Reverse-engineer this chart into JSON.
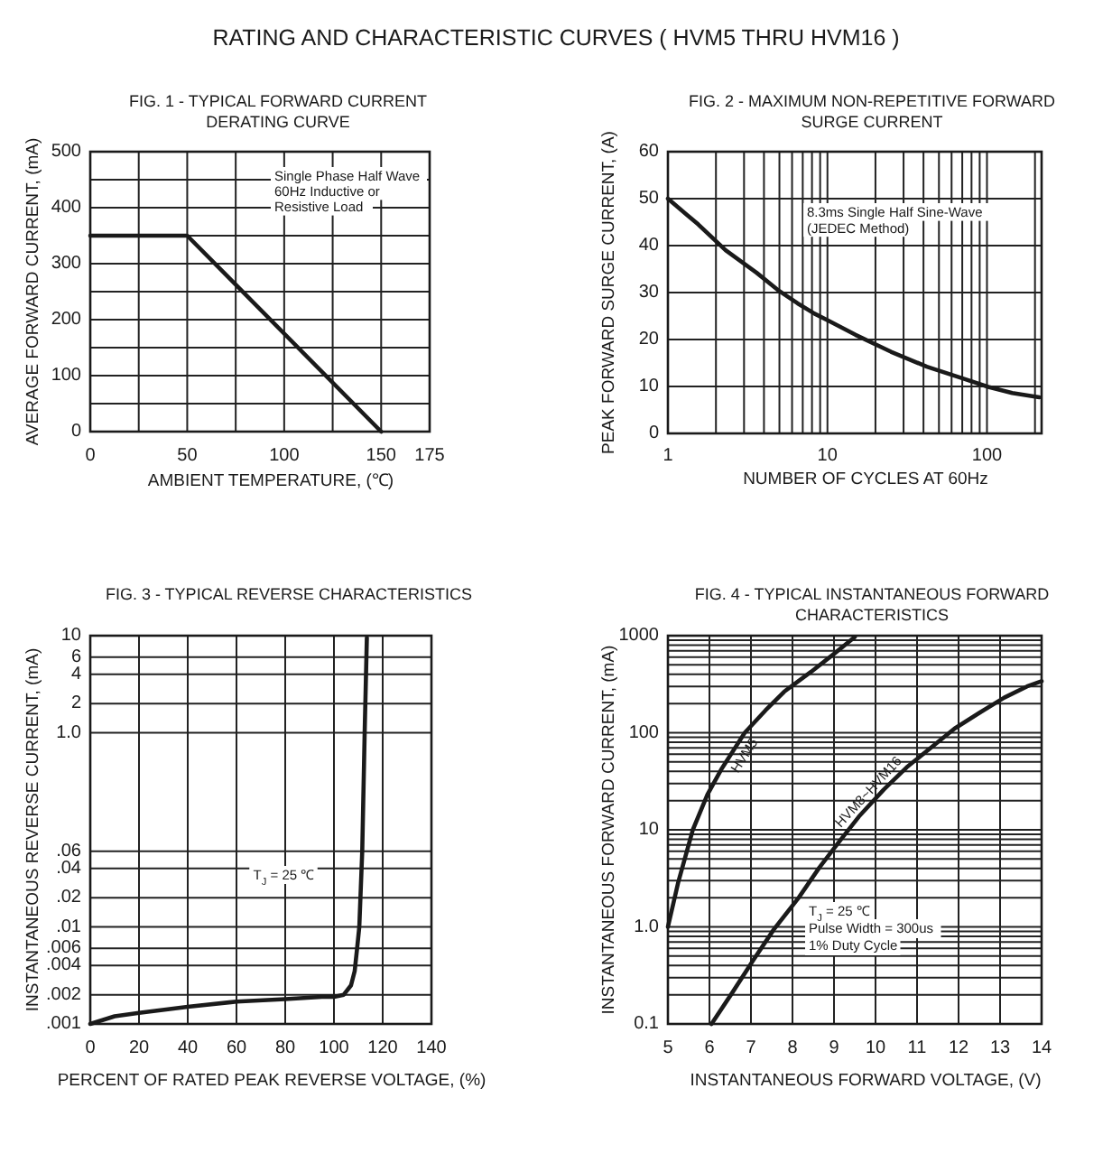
{
  "chart_data": [
    {
      "type": "other",
      "title": "RATING AND CHARACTERISTIC CURVES ( HVM5 THRU HVM16 )"
    },
    {
      "type": "line",
      "title": "FIG. 1 - TYPICAL FORWARD CURRENT DERATING CURVE",
      "xlabel": "AMBIENT TEMPERATURE, (℃)",
      "ylabel": "AVERAGE FORWARD CURRENT, (mA)",
      "x": [
        0,
        50,
        150
      ],
      "series": [
        {
          "color": "#1a1a1a",
          "values": [
            350,
            350,
            0
          ]
        }
      ],
      "xlim": [
        0,
        175
      ],
      "xticks": [
        0,
        {
          "value": 25,
          "label": null
        },
        50,
        {
          "value": 75,
          "label": null
        },
        100,
        {
          "value": 125,
          "label": null
        },
        150,
        175
      ],
      "ylim": [
        0,
        500
      ],
      "yticks": [
        0,
        {
          "value": 50,
          "label": null
        },
        100,
        {
          "value": 150,
          "label": null
        },
        200,
        {
          "value": 250,
          "label": null
        },
        300,
        {
          "value": 350,
          "label": null
        },
        400,
        {
          "value": 450,
          "label": null
        },
        500
      ],
      "grid": true,
      "annotations": [
        "Single Phase Half Wave",
        "60Hz Inductive or",
        "Resistive Load"
      ]
    },
    {
      "type": "line",
      "title": "FIG. 2 - MAXIMUM NON-REPETITIVE FORWARD SURGE CURRENT",
      "xlabel": "NUMBER OF CYCLES AT 60Hz",
      "ylabel": "PEAK FORWARD SURGE CURRENT, (A)",
      "x": [
        1,
        1.55,
        2.3,
        3.6,
        5,
        6.5,
        8.3,
        10.3,
        15,
        25,
        42,
        72,
        102,
        144,
        213
      ],
      "series": [
        {
          "color": "#1a1a1a",
          "values": [
            50,
            44.5,
            39,
            34.2,
            30.3,
            27.7,
            25.5,
            23.9,
            21,
            17.4,
            14.2,
            11.6,
            9.9,
            8.6,
            7.7
          ]
        }
      ],
      "log": "x",
      "xlim": [
        1,
        220
      ],
      "xticks": [
        1,
        {
          "value": 2,
          "label": null
        },
        {
          "value": 3,
          "label": null
        },
        {
          "value": 4,
          "label": null
        },
        {
          "value": 5,
          "label": null
        },
        {
          "value": 6,
          "label": null
        },
        {
          "value": 7,
          "label": null
        },
        {
          "value": 8,
          "label": null
        },
        {
          "value": 9,
          "label": null
        },
        10,
        {
          "value": 20,
          "label": null
        },
        {
          "value": 30,
          "label": null
        },
        {
          "value": 40,
          "label": null
        },
        {
          "value": 50,
          "label": null
        },
        {
          "value": 60,
          "label": null
        },
        {
          "value": 70,
          "label": null
        },
        {
          "value": 80,
          "label": null
        },
        {
          "value": 90,
          "label": null
        },
        100,
        {
          "value": 200,
          "label": null
        }
      ],
      "ylim": [
        0,
        60
      ],
      "yticks": [
        0,
        10,
        20,
        30,
        40,
        50,
        60
      ],
      "grid": true,
      "annotations": [
        "8.3ms Single Half Sine-Wave",
        "(JEDEC Method)"
      ]
    },
    {
      "type": "line",
      "title": "FIG. 3 - TYPICAL REVERSE CHARACTERISTICS",
      "xlabel": "PERCENT OF RATED PEAK REVERSE VOLTAGE, (%)",
      "ylabel": "INSTANTANEOUS REVERSE CURRENT, (mA)",
      "x": [
        0,
        10,
        20,
        40,
        60,
        80,
        95,
        100,
        104,
        107,
        108.5,
        109.5,
        110.4,
        111.6,
        112.6,
        113.5
      ],
      "series": [
        {
          "color": "#1a1a1a",
          "values": [
            0.001,
            0.0012,
            0.0013,
            0.0015,
            0.0017,
            0.0018,
            0.0019,
            0.0019,
            0.002,
            0.0025,
            0.0035,
            0.006,
            0.01,
            0.06,
            1,
            9.5
          ]
        }
      ],
      "log": true,
      "xlim": [
        0,
        140
      ],
      "xticks": [
        0,
        20,
        40,
        60,
        80,
        100,
        120,
        140
      ],
      "ylim": [
        0.001,
        10
      ],
      "yticks": [
        {
          "value": 0.001,
          "label": ".001"
        },
        {
          "value": 0.002,
          "label": ".002"
        },
        {
          "value": 0.004,
          "label": ".004"
        },
        {
          "value": 0.006,
          "label": ".006"
        },
        {
          "value": 0.01,
          "label": ".01"
        },
        {
          "value": 0.02,
          "label": ".02"
        },
        {
          "value": 0.04,
          "label": ".04"
        },
        {
          "value": 0.06,
          "label": ".06"
        },
        {
          "value": 1,
          "label": "1.0"
        },
        2,
        4,
        6,
        10
      ],
      "grid": true,
      "annotations": [
        "T$_{J}$ = 25 ℃"
      ]
    },
    {
      "type": "line",
      "title": "FIG. 4 - TYPICAL INSTANTANEOUS FORWARD CHARACTERISTICS",
      "xlabel": "INSTANTANEOUS FORWARD VOLTAGE, (V)",
      "ylabel": "INSTANTANEOUS FORWARD CURRENT, (mA)",
      "series": [
        {
          "name": "HVM5",
          "color": "#1a1a1a",
          "x": [
            5,
            5.25,
            5.6,
            5.95,
            6.3,
            6.85,
            7.35,
            7.8,
            8.45,
            9,
            9.5
          ],
          "values": [
            1,
            2.9,
            10,
            23,
            43,
            100,
            170,
            265,
            425,
            650,
            970
          ]
        },
        {
          "name": "HVM8~HVM16",
          "color": "#1a1a1a",
          "x": [
            6.05,
            6.55,
            7.05,
            7.55,
            8.15,
            8.65,
            9.1,
            9.6,
            10.2,
            10.75,
            11.35,
            11.9,
            12.5,
            13.1,
            13.65,
            14
          ],
          "values": [
            0.1,
            0.21,
            0.45,
            0.94,
            2,
            4.1,
            7.3,
            13.7,
            26,
            44,
            71,
            110,
            160,
            230,
            300,
            340
          ]
        }
      ],
      "log": true,
      "xlim": [
        5,
        14
      ],
      "xticks": [
        5,
        6,
        7,
        8,
        9,
        10,
        11,
        12,
        13,
        14
      ],
      "ylim": [
        0.1,
        1000
      ],
      "yticks": [
        0.1,
        {
          "value": 0.2,
          "label": null
        },
        {
          "value": 0.3,
          "label": null
        },
        {
          "value": 0.4,
          "label": null
        },
        {
          "value": 0.5,
          "label": null
        },
        {
          "value": 0.6,
          "label": null
        },
        {
          "value": 0.7,
          "label": null
        },
        {
          "value": 0.8,
          "label": null
        },
        {
          "value": 0.9,
          "label": null
        },
        {
          "value": 1,
          "label": "1.0"
        },
        {
          "value": 2,
          "label": null
        },
        {
          "value": 3,
          "label": null
        },
        {
          "value": 4,
          "label": null
        },
        {
          "value": 5,
          "label": null
        },
        {
          "value": 6,
          "label": null
        },
        {
          "value": 7,
          "label": null
        },
        {
          "value": 8,
          "label": null
        },
        {
          "value": 9,
          "label": null
        },
        10,
        {
          "value": 20,
          "label": null
        },
        {
          "value": 30,
          "label": null
        },
        {
          "value": 40,
          "label": null
        },
        {
          "value": 50,
          "label": null
        },
        {
          "value": 60,
          "label": null
        },
        {
          "value": 70,
          "label": null
        },
        {
          "value": 80,
          "label": null
        },
        {
          "value": 90,
          "label": null
        },
        100,
        {
          "value": 200,
          "label": null
        },
        {
          "value": 300,
          "label": null
        },
        {
          "value": 400,
          "label": null
        },
        {
          "value": 500,
          "label": null
        },
        {
          "value": 600,
          "label": null
        },
        {
          "value": 700,
          "label": null
        },
        {
          "value": 800,
          "label": null
        },
        {
          "value": 900,
          "label": null
        },
        1000
      ],
      "grid": true,
      "annotations": [
        "T$_{J}$ = 25 ℃",
        "Pulse Width = 300us",
        "1% Duty Cycle"
      ]
    }
  ]
}
